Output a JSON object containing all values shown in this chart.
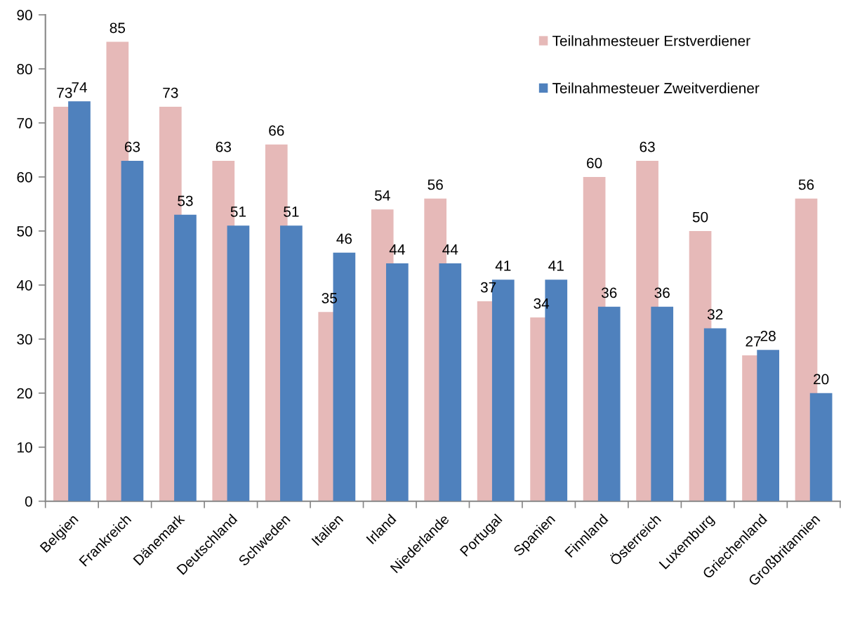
{
  "chart_data": {
    "type": "bar",
    "categories": [
      "Belgien",
      "Frankreich",
      "Dänemark",
      "Deutschland",
      "Schweden",
      "Italien",
      "Irland",
      "Niederlande",
      "Portugal",
      "Spanien",
      "Finnland",
      "Österreich",
      "Luxemburg",
      "Griechenland",
      "Großbritannien"
    ],
    "series": [
      {
        "name": "Teilnahmesteuer Erstverdiener",
        "color": "#e6b9b8",
        "values": [
          73,
          85,
          73,
          63,
          66,
          35,
          54,
          56,
          37,
          34,
          60,
          63,
          50,
          27,
          56
        ]
      },
      {
        "name": "Teilnahmesteuer Zweitverdiener",
        "color": "#4f81bd",
        "values": [
          74,
          63,
          53,
          51,
          51,
          46,
          44,
          44,
          41,
          41,
          36,
          36,
          32,
          28,
          20
        ]
      }
    ],
    "ylim": [
      0,
      90
    ],
    "yticks": [
      0,
      10,
      20,
      30,
      40,
      50,
      60,
      70,
      80,
      90
    ],
    "data_labels": true,
    "legend": "top right",
    "grid": false
  }
}
